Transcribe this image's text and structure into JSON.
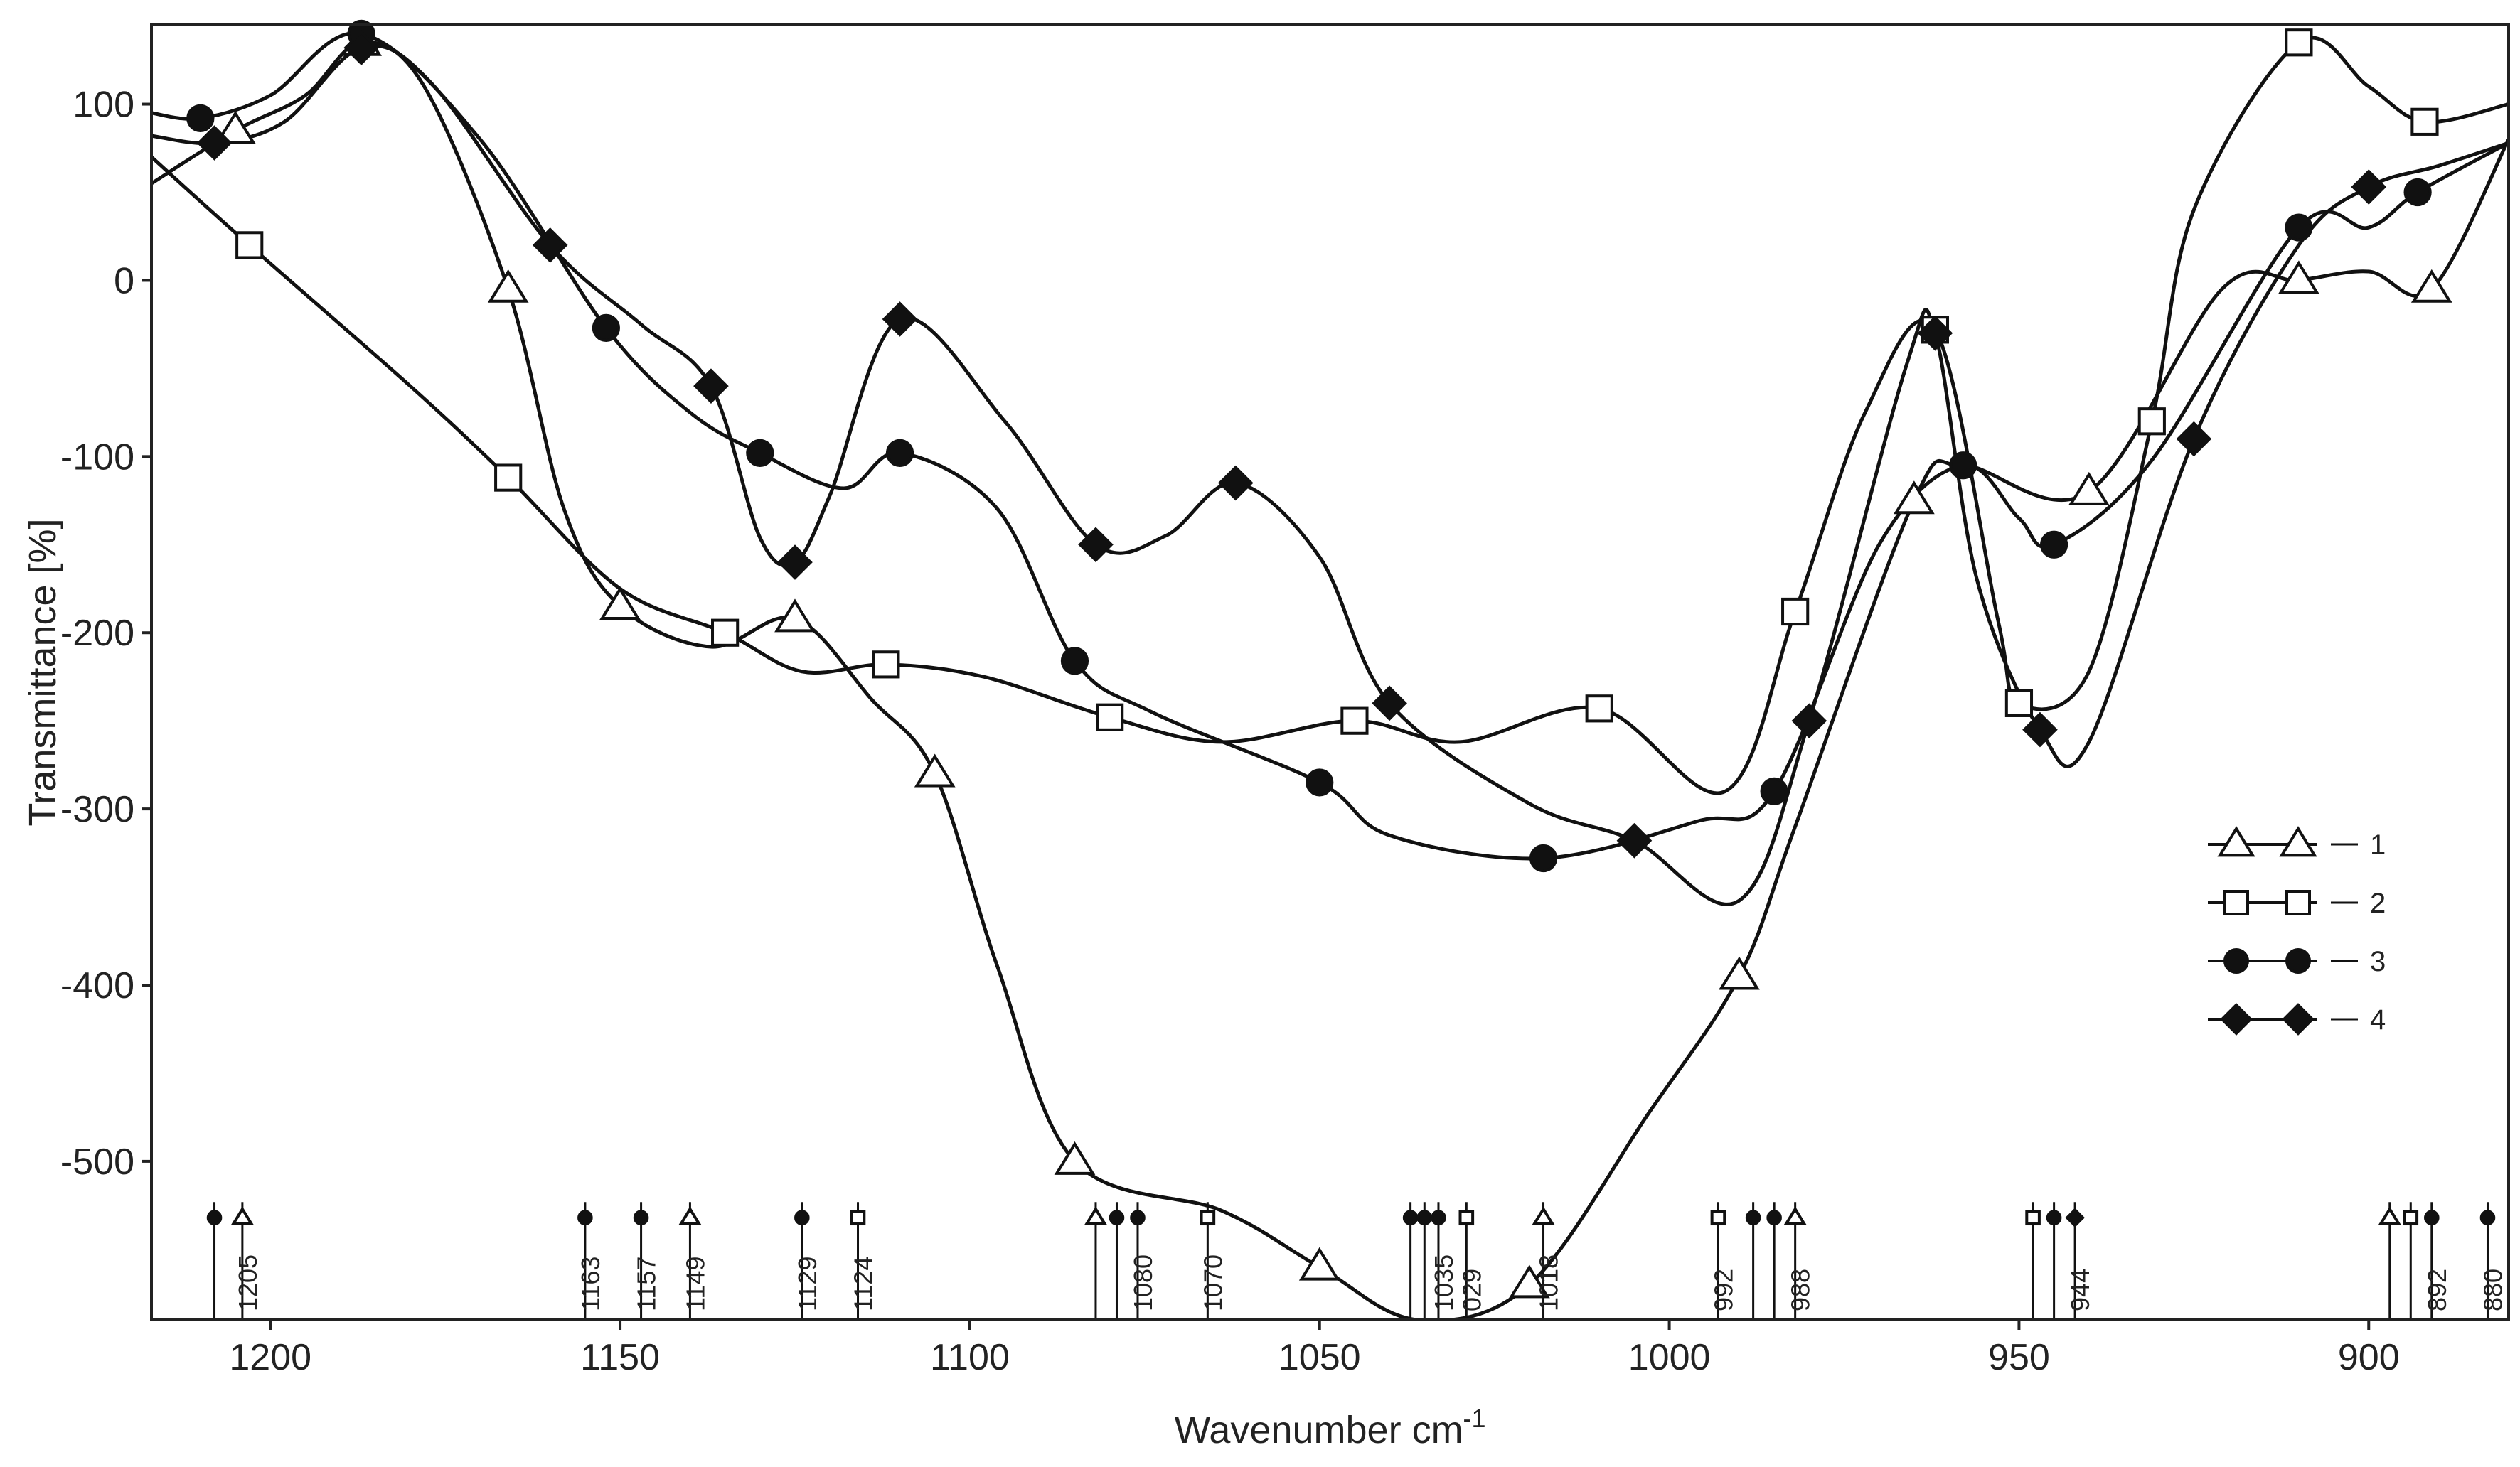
{
  "chart_data": {
    "type": "line",
    "title": "",
    "xlabel": "Wavenumber cm",
    "xlabel_superscript": "-1",
    "ylabel": "Transmittance [%]",
    "xlim": [
      1217,
      880
    ],
    "ylim": [
      -590,
      145
    ],
    "x_ticks": [
      1200,
      1150,
      1100,
      1050,
      1000,
      950,
      900
    ],
    "y_ticks": [
      100,
      0,
      -100,
      -200,
      -300,
      -400,
      -500
    ],
    "legend_position": "right",
    "colors": {
      "line": "#111111",
      "fill": "#111111",
      "background": "#ffffff"
    },
    "series": [
      {
        "name": "1",
        "marker": "triangle-open",
        "points": [
          [
            1217,
            55
          ],
          [
            1205,
            85
          ],
          [
            1195,
            105
          ],
          [
            1187,
            135
          ],
          [
            1178,
            110
          ],
          [
            1166,
            -5
          ],
          [
            1158,
            -130
          ],
          [
            1150,
            -185
          ],
          [
            1137,
            -208
          ],
          [
            1125,
            -192
          ],
          [
            1114,
            -238
          ],
          [
            1105,
            -280
          ],
          [
            1096,
            -390
          ],
          [
            1085,
            -500
          ],
          [
            1064,
            -528
          ],
          [
            1050,
            -560
          ],
          [
            1036,
            -590
          ],
          [
            1020,
            -570
          ],
          [
            1003,
            -473
          ],
          [
            990,
            -395
          ],
          [
            982,
            -310
          ],
          [
            965,
            -125
          ],
          [
            958,
            -105
          ],
          [
            940,
            -120
          ],
          [
            921,
            -5
          ],
          [
            910,
            0
          ],
          [
            900,
            5
          ],
          [
            891,
            -5
          ],
          [
            880,
            80
          ]
        ]
      },
      {
        "name": "2",
        "marker": "square-open",
        "points": [
          [
            1217,
            70
          ],
          [
            1203,
            20
          ],
          [
            1180,
            -60
          ],
          [
            1166,
            -112
          ],
          [
            1150,
            -175
          ],
          [
            1135,
            -200
          ],
          [
            1124,
            -222
          ],
          [
            1112,
            -218
          ],
          [
            1098,
            -225
          ],
          [
            1080,
            -248
          ],
          [
            1064,
            -262
          ],
          [
            1045,
            -250
          ],
          [
            1030,
            -262
          ],
          [
            1010,
            -243
          ],
          [
            992,
            -290
          ],
          [
            982,
            -188
          ],
          [
            972,
            -75
          ],
          [
            962,
            -28
          ],
          [
            953,
            -193
          ],
          [
            950,
            -240
          ],
          [
            940,
            -222
          ],
          [
            931,
            -80
          ],
          [
            925,
            40
          ],
          [
            910,
            135
          ],
          [
            900,
            110
          ],
          [
            892,
            90
          ],
          [
            880,
            100
          ]
        ]
      },
      {
        "name": "3",
        "marker": "circle-filled",
        "points": [
          [
            1217,
            95
          ],
          [
            1210,
            92
          ],
          [
            1200,
            105
          ],
          [
            1187,
            140
          ],
          [
            1170,
            80
          ],
          [
            1152,
            -27
          ],
          [
            1140,
            -75
          ],
          [
            1130,
            -98
          ],
          [
            1118,
            -118
          ],
          [
            1110,
            -98
          ],
          [
            1096,
            -130
          ],
          [
            1085,
            -216
          ],
          [
            1074,
            -245
          ],
          [
            1050,
            -285
          ],
          [
            1040,
            -315
          ],
          [
            1018,
            -328
          ],
          [
            996,
            -307
          ],
          [
            985,
            -290
          ],
          [
            970,
            -150
          ],
          [
            958,
            -105
          ],
          [
            950,
            -135
          ],
          [
            945,
            -150
          ],
          [
            931,
            -102
          ],
          [
            910,
            30
          ],
          [
            900,
            30
          ],
          [
            893,
            50
          ],
          [
            880,
            78
          ]
        ]
      },
      {
        "name": "4",
        "marker": "diamond-filled",
        "points": [
          [
            1217,
            82
          ],
          [
            1208,
            78
          ],
          [
            1198,
            90
          ],
          [
            1187,
            132
          ],
          [
            1177,
            112
          ],
          [
            1160,
            20
          ],
          [
            1147,
            -25
          ],
          [
            1137,
            -60
          ],
          [
            1130,
            -146
          ],
          [
            1125,
            -160
          ],
          [
            1120,
            -122
          ],
          [
            1110,
            -22
          ],
          [
            1095,
            -80
          ],
          [
            1082,
            -150
          ],
          [
            1072,
            -145
          ],
          [
            1062,
            -115
          ],
          [
            1050,
            -157
          ],
          [
            1040,
            -240
          ],
          [
            1020,
            -297
          ],
          [
            1005,
            -318
          ],
          [
            990,
            -352
          ],
          [
            980,
            -250
          ],
          [
            966,
            -47
          ],
          [
            962,
            -30
          ],
          [
            956,
            -170
          ],
          [
            947,
            -255
          ],
          [
            940,
            -262
          ],
          [
            925,
            -90
          ],
          [
            910,
            20
          ],
          [
            900,
            53
          ],
          [
            890,
            65
          ],
          [
            880,
            78
          ]
        ]
      }
    ],
    "peak_markers": [
      {
        "label": "1205",
        "items": [
          {
            "x": 1208,
            "marker": "circle-filled"
          },
          {
            "x": 1204,
            "marker": "triangle-open"
          }
        ]
      },
      {
        "label": "1163",
        "items": [
          {
            "x": 1155,
            "marker": "circle-filled"
          }
        ]
      },
      {
        "label": "1157",
        "items": [
          {
            "x": 1147,
            "marker": "circle-filled"
          }
        ]
      },
      {
        "label": "1149",
        "items": [
          {
            "x": 1140,
            "marker": "triangle-open"
          }
        ]
      },
      {
        "label": "1129",
        "items": [
          {
            "x": 1124,
            "marker": "circle-filled"
          }
        ]
      },
      {
        "label": "1124",
        "items": [
          {
            "x": 1116,
            "marker": "square-open"
          }
        ]
      },
      {
        "label": "1080",
        "items": [
          {
            "x": 1082,
            "marker": "triangle-open"
          },
          {
            "x": 1079,
            "marker": "circle-filled"
          },
          {
            "x": 1076,
            "marker": "circle-filled"
          }
        ]
      },
      {
        "label": "1070",
        "items": [
          {
            "x": 1066,
            "marker": "square-open"
          }
        ]
      },
      {
        "label": "1035",
        "items": [
          {
            "x": 1037,
            "marker": "circle-filled"
          },
          {
            "x": 1035,
            "marker": "circle-filled"
          },
          {
            "x": 1033,
            "marker": "circle-filled"
          }
        ]
      },
      {
        "label": "029",
        "items": [
          {
            "x": 1029,
            "marker": "square-open"
          }
        ]
      },
      {
        "label": "1018",
        "items": [
          {
            "x": 1018,
            "marker": "triangle-open"
          }
        ]
      },
      {
        "label": "992",
        "items": [
          {
            "x": 993,
            "marker": "square-open"
          }
        ]
      },
      {
        "label": "988",
        "items": [
          {
            "x": 988,
            "marker": "circle-filled"
          },
          {
            "x": 985,
            "marker": "circle-filled"
          },
          {
            "x": 982,
            "marker": "triangle-open"
          }
        ]
      },
      {
        "label": "944",
        "items": [
          {
            "x": 948,
            "marker": "square-open"
          },
          {
            "x": 945,
            "marker": "circle-filled"
          },
          {
            "x": 942,
            "marker": "diamond-filled"
          }
        ]
      },
      {
        "label": "892",
        "items": [
          {
            "x": 897,
            "marker": "triangle-open"
          },
          {
            "x": 894,
            "marker": "square-open"
          },
          {
            "x": 891,
            "marker": "circle-filled"
          }
        ]
      },
      {
        "label": "880",
        "items": [
          {
            "x": 883,
            "marker": "circle-filled"
          }
        ]
      }
    ]
  }
}
